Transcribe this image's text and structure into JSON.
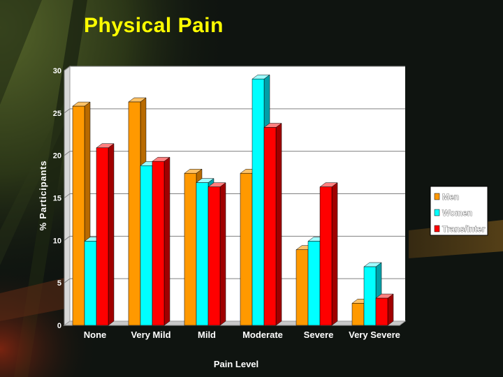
{
  "slide": {
    "title": "Physical Pain"
  },
  "colors": {
    "men": "#ff9900",
    "men_side": "#b86a00",
    "men_top": "#ffc266",
    "women": "#00ffff",
    "women_side": "#00a0a8",
    "women_top": "#9ffcff",
    "trans": "#ff0000",
    "trans_side": "#a00000",
    "trans_top": "#ff8080",
    "plot_bg": "#ffffff",
    "text": "#ffffff",
    "axis": "#808080"
  },
  "chart_data": {
    "type": "bar",
    "title": "Physical Pain",
    "xlabel": "Pain Level",
    "ylabel": "% Participants",
    "ylim": [
      0,
      30
    ],
    "yticks": [
      "0",
      "5",
      "10",
      "15",
      "20",
      "25",
      "30"
    ],
    "grid": true,
    "legend_position": "right",
    "categories": [
      "None",
      "Very Mild",
      "Mild",
      "Moderate",
      "Severe",
      "Very Severe"
    ],
    "series": [
      {
        "key": "men",
        "name": "Men",
        "values": [
          25.8,
          26.3,
          17.9,
          17.9,
          8.9,
          2.6
        ]
      },
      {
        "key": "women",
        "name": "Women",
        "values": [
          9.9,
          18.8,
          16.8,
          29.0,
          9.9,
          6.9
        ]
      },
      {
        "key": "trans",
        "name": "Trans/Inter",
        "values": [
          20.9,
          19.3,
          16.3,
          23.3,
          16.3,
          3.2
        ]
      }
    ]
  }
}
